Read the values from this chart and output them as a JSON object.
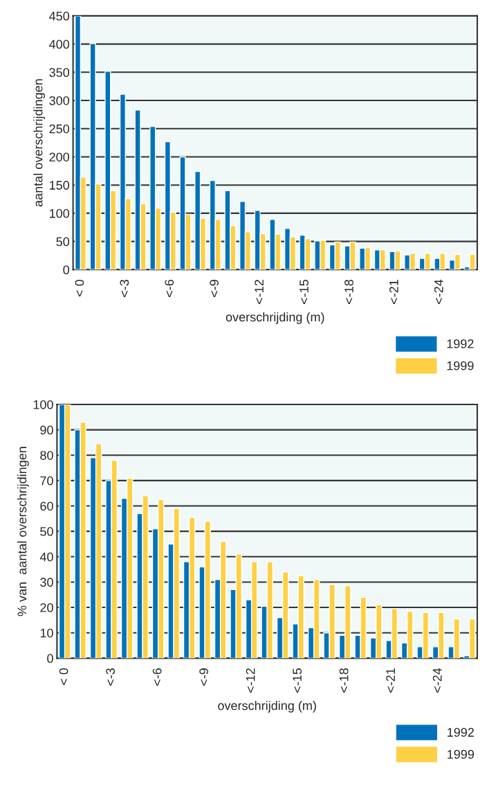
{
  "chart_data": [
    {
      "type": "bar",
      "xlabel": "overschrijding (m)",
      "ylabel": "aantal overschrijdingen",
      "categories": [
        "< 0",
        null,
        null,
        "<-3",
        null,
        null,
        "<-6",
        null,
        null,
        "<-9",
        null,
        null,
        "<-12",
        null,
        null,
        "<-15",
        null,
        null,
        "<-18",
        null,
        null,
        "<-21",
        null,
        null,
        "<-24",
        null,
        null
      ],
      "ylim": [
        0,
        450
      ],
      "yticks": [
        0,
        50,
        100,
        150,
        200,
        250,
        300,
        350,
        400,
        450
      ],
      "grid": "y",
      "legend": "bottom right",
      "series": [
        {
          "name": "1992",
          "color": "#0072bc",
          "values": [
            450,
            401,
            352,
            311,
            283,
            254,
            227,
            200,
            174,
            158,
            140,
            121,
            105,
            89,
            73,
            61,
            51,
            44,
            42,
            38,
            35,
            32,
            26,
            20,
            20,
            17,
            5
          ]
        },
        {
          "name": "1999",
          "color": "#ffcf44",
          "values": [
            164,
            152,
            140,
            126,
            117,
            109,
            102,
            98,
            91,
            89,
            78,
            67,
            64,
            63,
            58,
            55,
            52,
            49,
            49,
            39,
            35,
            33,
            29,
            29,
            29,
            27,
            27
          ]
        }
      ]
    },
    {
      "type": "bar",
      "xlabel": "overschrijding (m)",
      "ylabel": "% van  aantal overschrijdingen",
      "categories": [
        "< 0",
        null,
        null,
        "<-3",
        null,
        null,
        "<-6",
        null,
        null,
        "<-9",
        null,
        null,
        "<-12",
        null,
        null,
        "<-15",
        null,
        null,
        "<-18",
        null,
        null,
        "<-21",
        null,
        null,
        "<-24",
        null,
        null
      ],
      "ylim": [
        0,
        100
      ],
      "yticks": [
        0,
        10,
        20,
        30,
        40,
        50,
        60,
        70,
        80,
        90,
        100
      ],
      "grid": "y",
      "legend": "bottom right",
      "series": [
        {
          "name": "1992",
          "color": "#0072bc",
          "values": [
            100,
            90,
            79,
            70,
            63,
            57,
            51,
            45,
            38,
            36,
            31,
            27,
            23,
            20.5,
            16,
            13.5,
            12,
            10,
            9,
            9,
            8,
            7,
            6,
            4.5,
            4.5,
            4.5,
            1
          ]
        },
        {
          "name": "1999",
          "color": "#ffcf44",
          "values": [
            100,
            93,
            84.5,
            78,
            71,
            64,
            62.5,
            59,
            55.5,
            54,
            46,
            41,
            38,
            38,
            34,
            32.5,
            31,
            29,
            28.5,
            24,
            21,
            19.5,
            18.5,
            18,
            18,
            15.5,
            15.5
          ]
        }
      ]
    }
  ]
}
